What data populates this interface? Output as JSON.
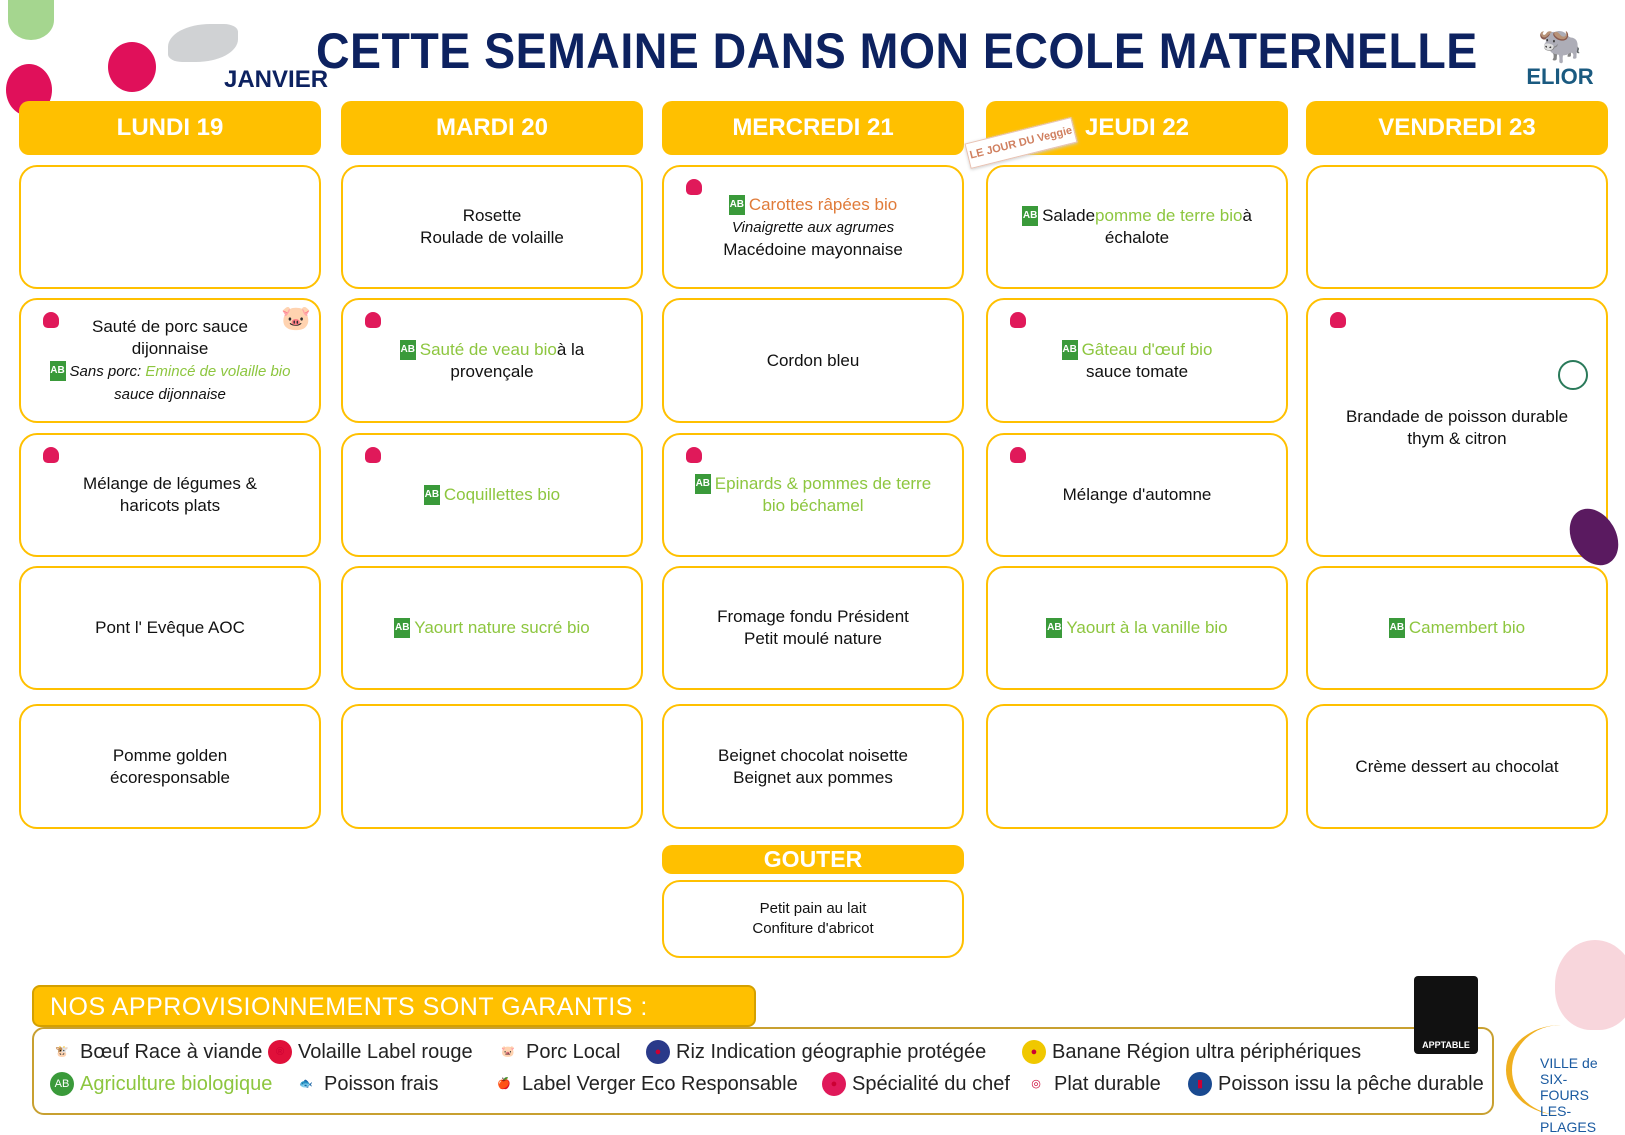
{
  "header": {
    "title": "CETTE SEMAINE DANS MON ECOLE MATERNELLE",
    "month": "JANVIER",
    "brand": "ELIOR",
    "badge": "LE JOUR DU Veggie"
  },
  "days": [
    {
      "label": "LUNDI 19",
      "items": [
        {
          "lines": []
        },
        {
          "lines": [
            "Sauté de porc sauce",
            "dijonnaise"
          ],
          "alt_prefix": "Sans porc: ",
          "alt": "Emincé de volaille bio",
          "alt2": "sauce dijonnaise"
        },
        {
          "lines": [
            "Mélange de légumes &",
            "haricots plats"
          ]
        },
        {
          "lines": [
            "Pont l' Evêque AOC"
          ]
        },
        {
          "lines": [
            "Pomme golden",
            "écoresponsable"
          ]
        }
      ]
    },
    {
      "label": "MARDI 20",
      "items": [
        {
          "lines": [
            "Rosette",
            "Roulade de volaille"
          ]
        },
        {
          "green": "Sauté de veau bio",
          "rest": " à la",
          "line2": "provençale"
        },
        {
          "green": "Coquillettes bio"
        },
        {
          "green": "Yaourt nature sucré bio"
        },
        {
          "lines": []
        }
      ]
    },
    {
      "label": "MERCREDI 21",
      "items": [
        {
          "orange": "Carottes râpées bio",
          "italic": "Vinaigrette aux agrumes",
          "line": "Macédoine mayonnaise"
        },
        {
          "lines": [
            "Cordon bleu"
          ]
        },
        {
          "green": "Epinards & pommes de terre",
          "green2": "bio béchamel"
        },
        {
          "lines": [
            "Fromage fondu Président",
            "Petit moulé nature"
          ]
        },
        {
          "lines": [
            "Beignet chocolat noisette",
            "Beignet aux pommes"
          ]
        }
      ]
    },
    {
      "label": "JEUDI 22",
      "items": [
        {
          "pre": "Salade ",
          "green": "pomme de terre bio",
          "rest": " à",
          "line2": "échalote"
        },
        {
          "green": "Gâteau d'œuf bio",
          "line2": "sauce tomate"
        },
        {
          "lines": [
            "Mélange d'automne"
          ]
        },
        {
          "green": "Yaourt à la vanille bio"
        },
        {
          "lines": []
        }
      ]
    },
    {
      "label": "VENDREDI 23",
      "items": [
        {
          "lines": []
        },
        {
          "lines": [
            "Brandade de poisson durable",
            "thym & citron"
          ]
        },
        {
          "green": "Camembert bio"
        },
        {
          "lines": [
            "Crème dessert au chocolat"
          ]
        }
      ]
    }
  ],
  "gouter": {
    "label": "GOUTER",
    "lines": [
      "Petit pain au lait",
      "Confiture d'abricot"
    ]
  },
  "legend": {
    "title": "NOS APPROVISIONNEMENTS SONT GARANTIS :",
    "qr_label": "APPTABLE",
    "town": "VILLE de SIX-FOURS LES-PLAGES",
    "items": [
      "Bœuf Race à viande",
      "Volaille Label rouge",
      "Porc Local",
      "Riz Indication géographie protégée",
      "Banane Région ultra périphériques",
      "Agriculture biologique",
      "Poisson frais",
      "Label Verger Eco Responsable",
      "Spécialité du chef",
      "Plat durable",
      "Poisson issu  la pêche durable"
    ]
  },
  "colors": {
    "accent": "#FFC000",
    "title": "#0d2260",
    "bio": "#8dc63f",
    "chef": "#e0195a"
  }
}
